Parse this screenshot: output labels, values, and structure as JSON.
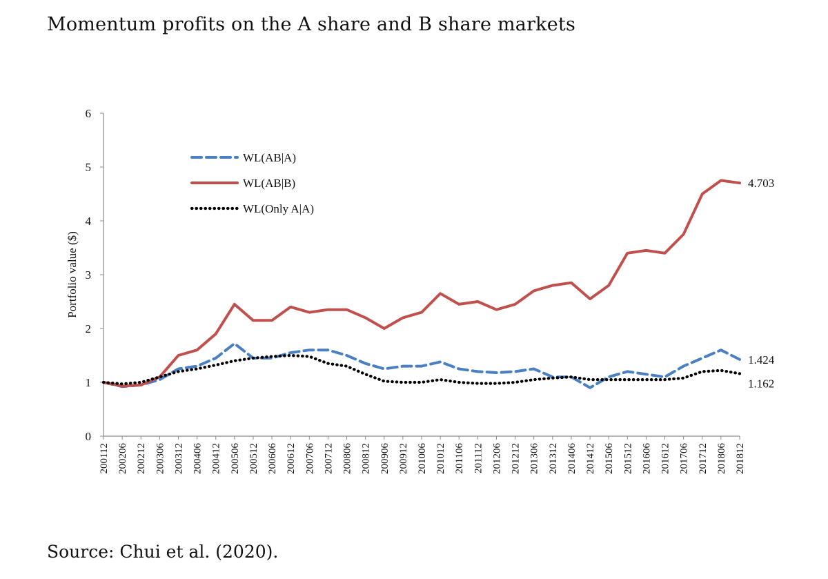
{
  "title": "Momentum profits on the A share and B share markets",
  "source": "Source: Chui et al. (2020).",
  "chart_data": {
    "type": "line",
    "ylabel": "Portfolio value ($)",
    "xlabel": "",
    "ylim": [
      0,
      6
    ],
    "yticks": [
      "0",
      "1",
      "2",
      "3",
      "4",
      "5",
      "6"
    ],
    "grid": false,
    "legend_position": "top-left",
    "x_tick_labels": [
      "200112",
      "200206",
      "200212",
      "200306",
      "200312",
      "200406",
      "200412",
      "200506",
      "200512",
      "200606",
      "200612",
      "200706",
      "200712",
      "200806",
      "200812",
      "200906",
      "200912",
      "201006",
      "201012",
      "201106",
      "201112",
      "201206",
      "201212",
      "201306",
      "201312",
      "201406",
      "201412",
      "201506",
      "201512",
      "201606",
      "201612",
      "201706",
      "201712",
      "201806",
      "201812"
    ],
    "series": [
      {
        "name": "WL(AB|A)",
        "color": "#4a7fc1",
        "style": "dashed",
        "end_label": "1.424",
        "values": [
          1.0,
          0.92,
          0.95,
          1.05,
          1.25,
          1.3,
          1.45,
          1.72,
          1.45,
          1.45,
          1.55,
          1.6,
          1.6,
          1.5,
          1.35,
          1.25,
          1.3,
          1.3,
          1.38,
          1.25,
          1.2,
          1.18,
          1.2,
          1.25,
          1.1,
          1.1,
          0.9,
          1.1,
          1.2,
          1.15,
          1.1,
          1.3,
          1.45,
          1.6,
          1.424
        ]
      },
      {
        "name": "WL(AB|B)",
        "color": "#c0504d",
        "style": "solid",
        "end_label": "4.703",
        "values": [
          1.0,
          0.93,
          0.95,
          1.1,
          1.5,
          1.6,
          1.9,
          2.45,
          2.15,
          2.15,
          2.4,
          2.3,
          2.35,
          2.35,
          2.2,
          2.0,
          2.2,
          2.3,
          2.65,
          2.45,
          2.5,
          2.35,
          2.45,
          2.7,
          2.8,
          2.85,
          2.55,
          2.8,
          3.4,
          3.45,
          3.4,
          3.75,
          4.5,
          4.75,
          4.703
        ]
      },
      {
        "name": "WL(Only A|A)",
        "color": "#000000",
        "style": "dotted",
        "end_label": "1.162",
        "values": [
          1.0,
          0.97,
          1.0,
          1.1,
          1.2,
          1.25,
          1.32,
          1.4,
          1.45,
          1.48,
          1.5,
          1.48,
          1.35,
          1.3,
          1.15,
          1.02,
          1.0,
          1.0,
          1.05,
          1.0,
          0.98,
          0.98,
          1.0,
          1.05,
          1.08,
          1.1,
          1.05,
          1.05,
          1.05,
          1.05,
          1.05,
          1.08,
          1.2,
          1.22,
          1.162
        ]
      }
    ]
  }
}
